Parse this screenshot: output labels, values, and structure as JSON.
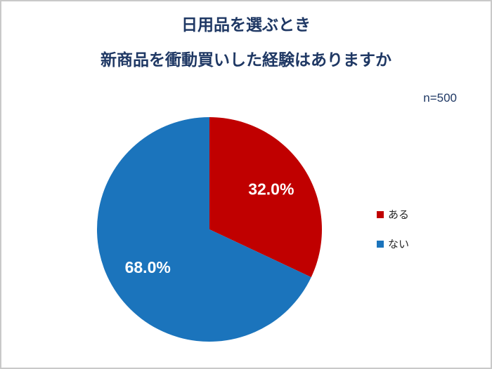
{
  "chart_data": {
    "type": "pie",
    "title_line1": "日用品を選ぶとき",
    "title_line2": "新商品を衝動買いした経験はありますか",
    "sample_size_label": "n=500",
    "series": [
      {
        "name": "ある",
        "value": 32.0,
        "display_label": "32.0%",
        "color": "#C00000"
      },
      {
        "name": "ない",
        "value": 68.0,
        "display_label": "68.0%",
        "color": "#1B74BC"
      }
    ],
    "start_angle_deg": 0,
    "direction": "clockwise",
    "slice_label_color": "#FFFFFF",
    "title_color": "#1F3864",
    "sample_size_color": "#1F3864",
    "legend_position": "right",
    "legend_text_color": "#262626"
  }
}
